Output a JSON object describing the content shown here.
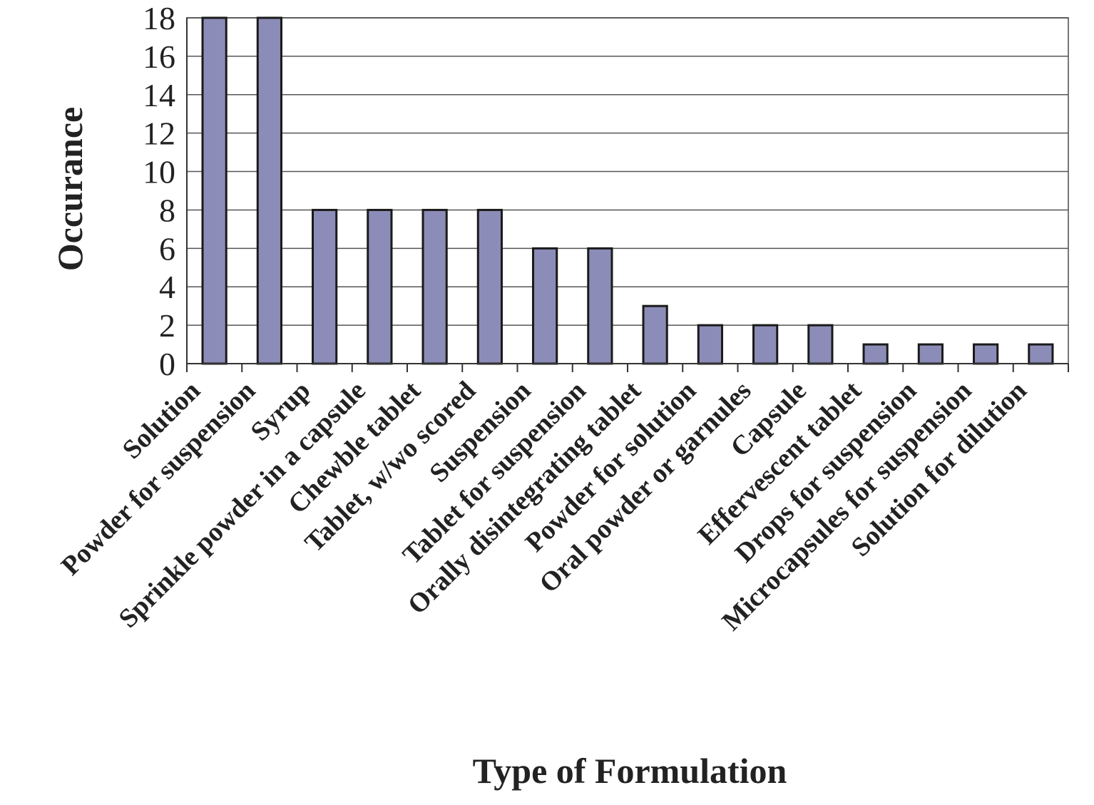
{
  "chart_data": {
    "type": "bar",
    "categories": [
      "Solution",
      "Powder for suspension",
      "Syrup",
      "Sprinkle powder in a capsule",
      "Chewble tablet",
      "Tablet, w/wo scored",
      "Suspension",
      "Tablet for suspension",
      "Orally disintegrating tablet",
      "Powder for solution",
      "Oral powder or garnules",
      "Capsule",
      "Effervescent tablet",
      "Drops for suspension",
      "Microcapsules for suspension",
      "Solution for dilution"
    ],
    "values": [
      18,
      18,
      8,
      8,
      8,
      8,
      6,
      6,
      3,
      2,
      2,
      2,
      1,
      1,
      1,
      1
    ],
    "title": "",
    "xlabel": "Type of Formulation",
    "ylabel": "Occurance",
    "ylim": [
      0,
      18
    ],
    "yticks": [
      "0",
      "2",
      "4",
      "6",
      "8",
      "10",
      "12",
      "14",
      "16",
      "18"
    ],
    "grid": true,
    "bar_color": "#8c8cb8",
    "bar_edge_color": "#1a1a1a"
  }
}
